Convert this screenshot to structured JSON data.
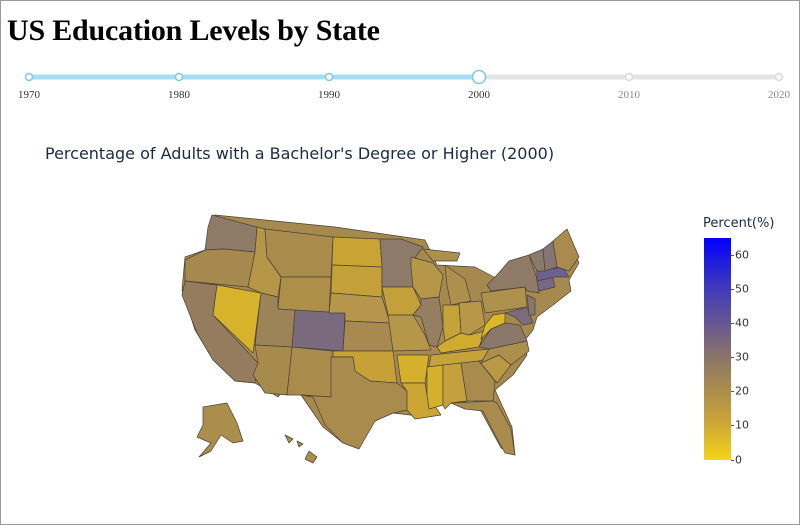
{
  "page_title": "US Education Levels by State",
  "slider": {
    "years": [
      "1970",
      "1980",
      "1990",
      "2000",
      "2010",
      "2020"
    ],
    "selected_index": 3,
    "active_color": "#a8dcf5",
    "inactive_color": "#e4e4e4"
  },
  "map": {
    "subtitle": "Percentage of Adults with a Bachelor's Degree or Higher (2000)"
  },
  "colorbar": {
    "title": "Percent(%)",
    "ticks": [
      "0",
      "10",
      "20",
      "30",
      "40",
      "50",
      "60"
    ],
    "range": [
      0,
      65
    ],
    "colors": [
      "#f6d417",
      "#a88a4e",
      "#6a5a8e",
      "#0000ff"
    ]
  }
}
